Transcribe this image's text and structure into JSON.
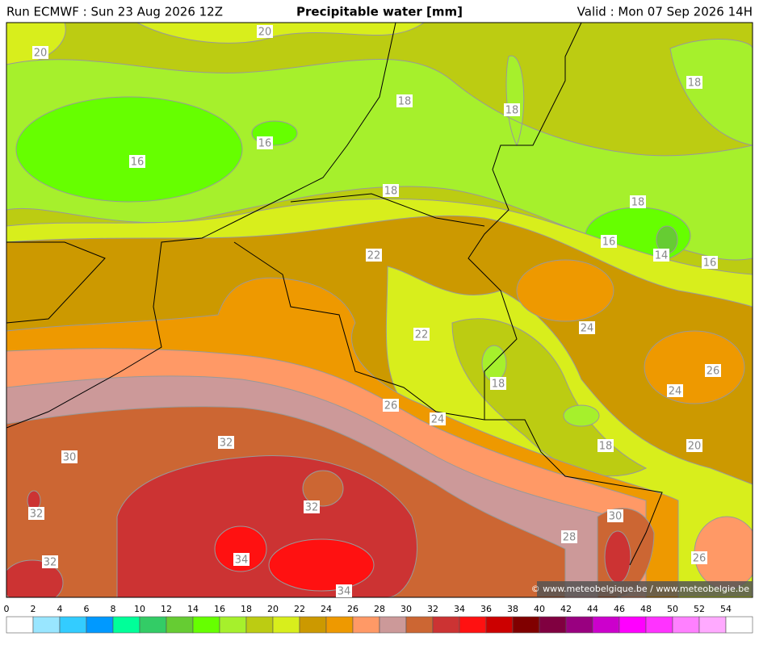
{
  "header": {
    "run": "Run ECMWF : Sun 23 Aug 2026 12Z",
    "title": "Precipitable water [mm]",
    "valid": "Valid : Mon 07 Sep 2026 14H"
  },
  "contour_labels": [
    20,
    20,
    18,
    18,
    18,
    16,
    16,
    18,
    18,
    16,
    14,
    16,
    22,
    22,
    24,
    26,
    24,
    18,
    26,
    24,
    18,
    20,
    32,
    30,
    32,
    32,
    30,
    28,
    34,
    34,
    26,
    32
  ],
  "colorbar": {
    "ticks": [
      0,
      2,
      4,
      6,
      8,
      10,
      12,
      14,
      16,
      18,
      20,
      22,
      24,
      26,
      28,
      30,
      32,
      34,
      36,
      38,
      40,
      42,
      44,
      46,
      48,
      50,
      52,
      54
    ],
    "colors": [
      "#ffffff",
      "#99e6ff",
      "#33ccff",
      "#0099ff",
      "#00ff99",
      "#33cc66",
      "#66cc33",
      "#66ff00",
      "#a6f02c",
      "#bccc12",
      "#d8ee1c",
      "#cc9900",
      "#ee9900",
      "#ff9966",
      "#cc9999",
      "#cc6633",
      "#cc3333",
      "#ff1111",
      "#cc0000",
      "#800000",
      "#800040",
      "#990080",
      "#cc00cc",
      "#ff00ff",
      "#ff33ff",
      "#ff80ff",
      "#ffaaff",
      "#ffffff"
    ]
  },
  "credit": "© www.meteobelgique.be / www.meteobelgie.be"
}
